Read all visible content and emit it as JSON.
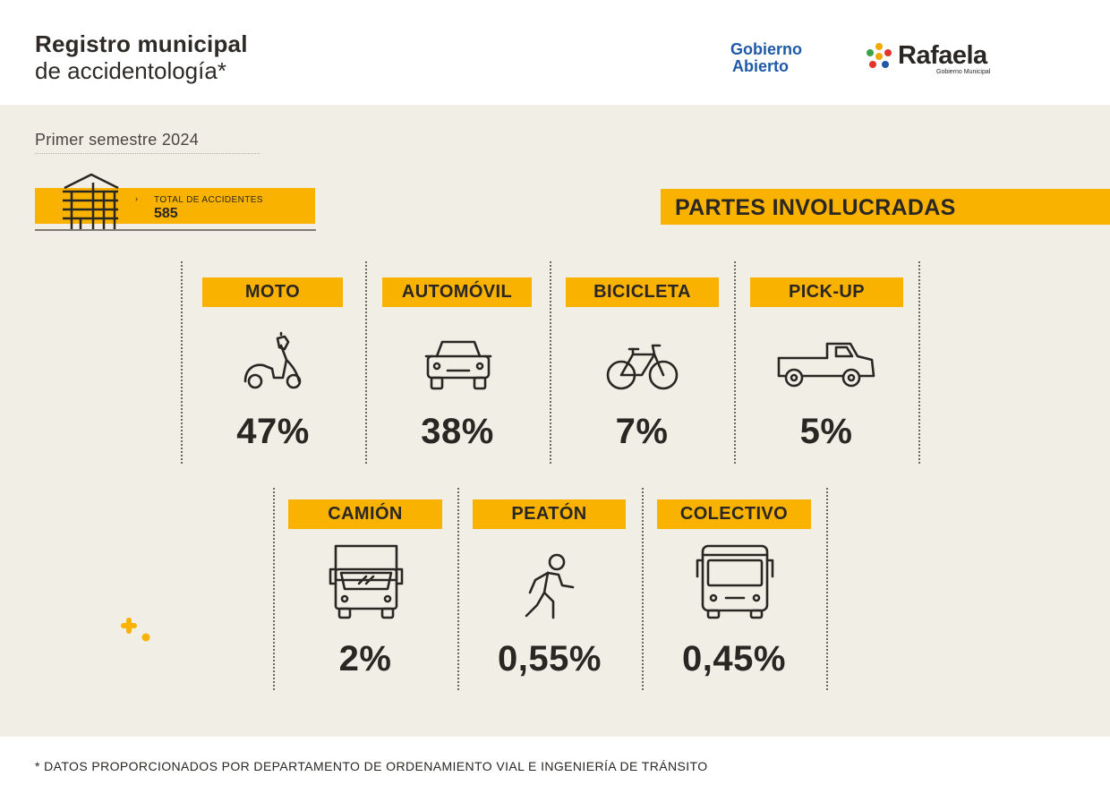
{
  "header": {
    "title_line1": "Registro municipal",
    "title_line2": "de accidentología*",
    "logo_gobierno_line1": "Gobierno",
    "logo_gobierno_line2": "Abierto",
    "logo_rafaela_name": "Rafaela",
    "logo_rafaela_sub": "Gobierno Municipal"
  },
  "period": "Primer semestre 2024",
  "total": {
    "label": "TOTAL DE ACCIDENTES",
    "value": "585",
    "arrow": "›"
  },
  "section_title": "PARTES INVOLUCRADAS",
  "items": [
    {
      "label": "MOTO",
      "percent": "47%",
      "icon": "scooter-icon"
    },
    {
      "label": "AUTOMÓVIL",
      "percent": "38%",
      "icon": "car-icon"
    },
    {
      "label": "BICICLETA",
      "percent": "7%",
      "icon": "bicycle-icon"
    },
    {
      "label": "PICK-UP",
      "percent": "5%",
      "icon": "pickup-truck-icon"
    },
    {
      "label": "CAMIÓN",
      "percent": "2%",
      "icon": "truck-icon"
    },
    {
      "label": "PEATÓN",
      "percent": "0,55%",
      "icon": "pedestrian-icon"
    },
    {
      "label": "COLECTIVO",
      "percent": "0,45%",
      "icon": "bus-icon"
    }
  ],
  "footnote": "* DATOS PROPORCIONADOS POR DEPARTAMENTO DE ORDENAMIENTO VIAL E INGENIERÍA DE TRÁNSITO",
  "colors": {
    "accent": "#f9b200",
    "background": "#f1eee6",
    "text": "#2a2623",
    "logo_blue": "#1e5aa8"
  }
}
